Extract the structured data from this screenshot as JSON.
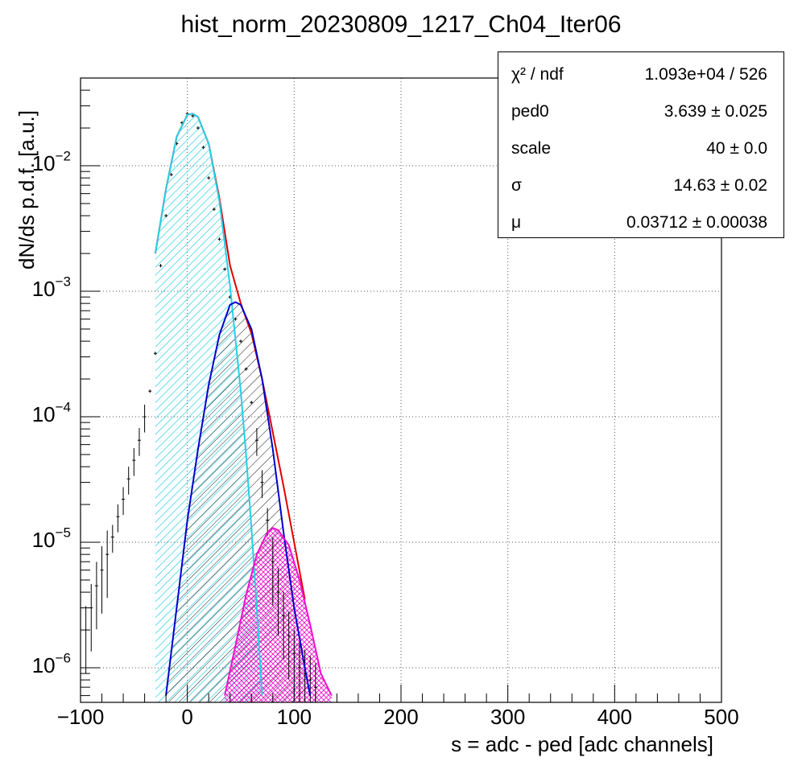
{
  "title": "hist_norm_20230809_1217_Ch04_Iter06",
  "xlabel": "s = adc - ped [adc channels]",
  "ylabel": "dN/ds p.d.f. [a.u.]",
  "x_tick_labels": [
    "−100",
    "0",
    "100",
    "200",
    "300",
    "400",
    "500"
  ],
  "y_tick_labels": [
    {
      "base": "10",
      "exp": "−2"
    },
    {
      "base": "10",
      "exp": "−3"
    },
    {
      "base": "10",
      "exp": "−4"
    },
    {
      "base": "10",
      "exp": "−5"
    },
    {
      "base": "10",
      "exp": "−6"
    }
  ],
  "stats": [
    {
      "name": "χ² / ndf",
      "value": "1.093e+04 / 526"
    },
    {
      "name": "ped0",
      "value": "3.639  ± 0.025"
    },
    {
      "name": "scale",
      "value": "40  ± 0.0"
    },
    {
      "name": "σ",
      "value": "14.63  ± 0.02"
    },
    {
      "name": "μ",
      "value": "0.03712  ± 0.00038"
    }
  ],
  "chart_data": {
    "type": "line",
    "title": "hist_norm_20230809_1217_Ch04_Iter06",
    "xlabel": "s = adc - ped [adc channels]",
    "ylabel": "dN/ds p.d.f. [a.u.]",
    "xlim": [
      -100,
      500
    ],
    "ylim": [
      5.3e-07,
      0.05
    ],
    "yscale": "log",
    "grid": true,
    "legend": "top-right",
    "fit_params": {
      "ped0": 3.639,
      "scale": 40,
      "sigma": 14.63,
      "mu": 0.03712,
      "chi2": 10930,
      "ndf": 526
    },
    "series": [
      {
        "color": "#000000",
        "kind": "histogram-points",
        "x": [
          -95,
          -90,
          -85,
          -80,
          -75,
          -70,
          -65,
          -60,
          -55,
          -50,
          -45,
          -40,
          -35,
          -30,
          -25,
          -20,
          -15,
          -10,
          -5,
          0,
          5,
          10,
          15,
          20,
          25,
          30,
          35,
          40,
          45,
          50,
          55,
          60,
          65,
          70,
          75,
          80,
          85,
          90,
          95,
          100,
          105,
          110,
          115,
          120
        ],
        "y": [
          2e-06,
          3e-06,
          4.5e-06,
          6e-06,
          8e-06,
          1.1e-05,
          1.6e-05,
          2.2e-05,
          3.2e-05,
          4.5e-05,
          6.5e-05,
          0.0001,
          0.00016,
          0.00032,
          0.0016,
          0.004,
          0.0085,
          0.015,
          0.022,
          0.026,
          0.025,
          0.02,
          0.014,
          0.008,
          0.0045,
          0.0026,
          0.0015,
          0.0009,
          0.0006,
          0.0004,
          0.00024,
          0.00013,
          6.5e-05,
          3e-05,
          1.5e-05,
          7e-06,
          4e-06,
          2.6e-06,
          1.8e-06,
          1.3e-06,
          1e-06,
          9e-07,
          8e-07,
          7e-07
        ]
      },
      {
        "color": "#e00000",
        "kind": "fit-total",
        "x": [
          -30,
          -20,
          -10,
          0,
          5,
          10,
          20,
          30,
          40,
          50,
          60,
          70,
          80,
          90,
          100,
          110
        ],
        "y": [
          0.002,
          0.0065,
          0.017,
          0.0255,
          0.026,
          0.0245,
          0.015,
          0.0055,
          0.0016,
          0.0008,
          0.00046,
          0.0002,
          7.5e-05,
          2.8e-05,
          1e-05,
          3.5e-06
        ]
      },
      {
        "color": "#26cfe6",
        "kind": "component-0pe",
        "x": [
          -30,
          -20,
          -10,
          0,
          5,
          10,
          20,
          30,
          40,
          50,
          55,
          60,
          65,
          70
        ],
        "y": [
          0.002,
          0.0065,
          0.017,
          0.0255,
          0.026,
          0.0245,
          0.015,
          0.0052,
          0.0011,
          0.00016,
          5e-05,
          1.3e-05,
          3e-06,
          6e-07
        ]
      },
      {
        "color": "#0000cc",
        "kind": "component-1pe",
        "x": [
          -20,
          -10,
          0,
          10,
          20,
          30,
          40,
          45,
          50,
          60,
          70,
          80,
          90,
          100,
          110,
          115
        ],
        "y": [
          6e-07,
          3e-06,
          1.5e-05,
          5.5e-05,
          0.00018,
          0.00045,
          0.00078,
          0.00082,
          0.00078,
          0.0005,
          0.0002,
          5.5e-05,
          1.2e-05,
          3e-06,
          1e-06,
          6e-07
        ]
      },
      {
        "color": "#ee11cc",
        "kind": "component-2pe",
        "x": [
          35,
          45,
          55,
          65,
          75,
          80,
          85,
          95,
          105,
          115,
          125,
          135
        ],
        "y": [
          6e-07,
          1.5e-06,
          3.8e-06,
          8e-06,
          1.2e-05,
          1.3e-05,
          1.25e-05,
          9.5e-06,
          5e-06,
          2.2e-06,
          9e-07,
          6e-07
        ]
      }
    ]
  }
}
